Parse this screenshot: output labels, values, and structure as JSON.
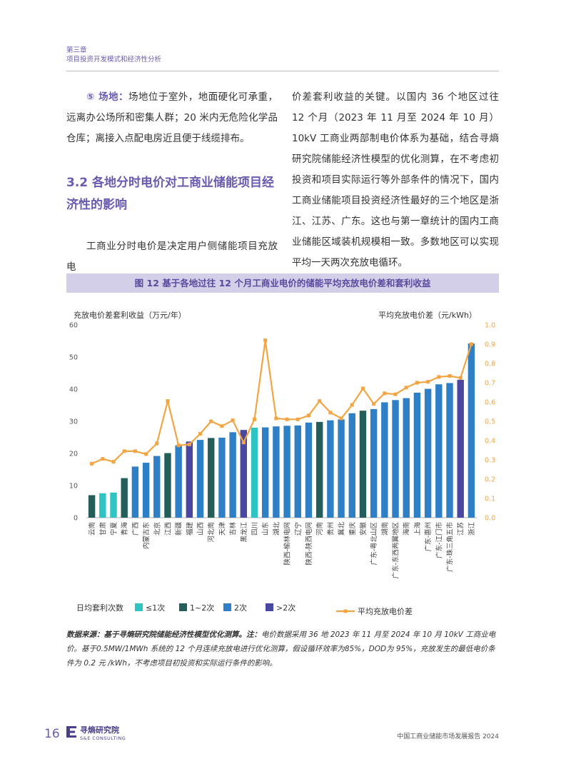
{
  "header": {
    "chapter": "第三章",
    "section": "项目投资开发模式和经济性分析"
  },
  "left_column": {
    "site_label": "⑤ 场地：",
    "site_text": "场地位于室外，地面硬化可承重，远离办公场所和密集人群；20 米内无危险化学品仓库；离接入点配电房近且便于线缆排布。",
    "heading": "3.2 各地分时电价对工商业储能项目经济性的影响",
    "intro": "工商业分时电价是决定用户侧储能项目充放电"
  },
  "right_column": {
    "text": "价差套利收益的关键。以国内 36 个地区过往 12 个月（2023 年 11 月至 2024 年 10 月）10kV 工商业两部制电价体系为基础，结合寻熵研究院储能经济性模型的优化测算，在不考虑初投资和项目实际运行等外部条件的情况下，国内工商业储能项目投资经济性最好的三个地区是浙江、江苏、广东。这也与第一章统计的国内工商业储能区域装机规模相一致。多数地区可以实现平均一天两次充放电循环。"
  },
  "figure": {
    "title": "图 12 基于各地过往 12 个月工商业电价的储能平均充放电价差和套利收益"
  },
  "chart_data": {
    "type": "bar",
    "left_axis_label": "充放电价差套利收益（万元/年）",
    "right_axis_label": "平均充放电价差（元/kWh）",
    "y_left_ticks": [
      "0",
      "10",
      "20",
      "30",
      "40",
      "50",
      "60"
    ],
    "y_right_ticks": [
      "0.0",
      "0.1",
      "0.2",
      "0.3",
      "0.4",
      "0.5",
      "0.6",
      "0.7",
      "0.8",
      "0.9",
      "1.0"
    ],
    "ylim_left": [
      0,
      60
    ],
    "ylim_right": [
      0,
      1.0
    ],
    "categories": [
      "云南",
      "甘肃",
      "宁夏",
      "青海",
      "广西",
      "内蒙古东",
      "北京",
      "江西",
      "新疆",
      "福建",
      "山西",
      "河北南",
      "天津",
      "吉林",
      "黑龙江",
      "四川",
      "山东",
      "湖北",
      "陕西-榆林电网",
      "辽宁",
      "陕西-陕西电网",
      "河南",
      "贵州",
      "冀北",
      "重庆",
      "安徽",
      "广东-粤北山区",
      "湖南",
      "广东-东西两翼地区",
      "海南",
      "上海",
      "广东-惠州",
      "广东-江门市",
      "广东-珠三角五市",
      "江苏",
      "浙江"
    ],
    "revenue": [
      7,
      7.6,
      7.8,
      12.3,
      15.9,
      17.1,
      19.2,
      20.1,
      22.5,
      23.7,
      24.2,
      24.8,
      24.9,
      26.6,
      27.3,
      28.0,
      28.1,
      28.4,
      28.6,
      28.7,
      29.6,
      29.8,
      30.3,
      30.6,
      32.5,
      33.3,
      33.8,
      35.9,
      36.6,
      37.2,
      38.9,
      40.1,
      41.5,
      41.9,
      42.9,
      54.2
    ],
    "spread": [
      0.28,
      0.305,
      0.29,
      0.345,
      0.345,
      0.33,
      0.385,
      0.605,
      0.375,
      0.38,
      0.435,
      0.5,
      0.475,
      0.505,
      0.39,
      0.51,
      0.92,
      0.515,
      0.51,
      0.51,
      0.53,
      0.605,
      0.545,
      0.515,
      0.585,
      0.67,
      0.59,
      0.645,
      0.64,
      0.675,
      0.7,
      0.705,
      0.73,
      0.735,
      0.725,
      0.9
    ],
    "bar_group": [
      1,
      0,
      0,
      1,
      2,
      2,
      2,
      1,
      2,
      3,
      2,
      1,
      2,
      2,
      3,
      0,
      2,
      2,
      2,
      2,
      2,
      1,
      2,
      2,
      2,
      1,
      2,
      2,
      2,
      2,
      2,
      2,
      2,
      2,
      3,
      2
    ],
    "legend": {
      "title": "日均套利次数",
      "items": [
        "≤1次",
        "1~2次",
        "2次",
        ">2次"
      ],
      "line_label": "平均充放电价差"
    },
    "colors": {
      "group": [
        "#2ec4c4",
        "#245e5a",
        "#2f7fc6",
        "#4a47a3"
      ],
      "line": "#f2a542"
    }
  },
  "note": {
    "lead": "数据来源：基于寻熵研究院储能经济性模型优化测算。注：",
    "text": "电价数据采用 36 地 2023 年 11 月至 2024 年 10 月 10kV 工商业电价。基于0.5MW/1MWh 系统的 12 个月连续充放电进行优化测算，假设循环效率为85%，DOD为 95%，充放发生的最低电价条件为 0.2 元 /kWh，不考虑项目初投资和实际运行条件的影响。"
  },
  "footer": {
    "page_number": "16",
    "brand_cn": "寻熵研究院",
    "brand_en": "S&E CONSULTING",
    "report_title": "中国工商业储能市场发展报告 2024"
  }
}
